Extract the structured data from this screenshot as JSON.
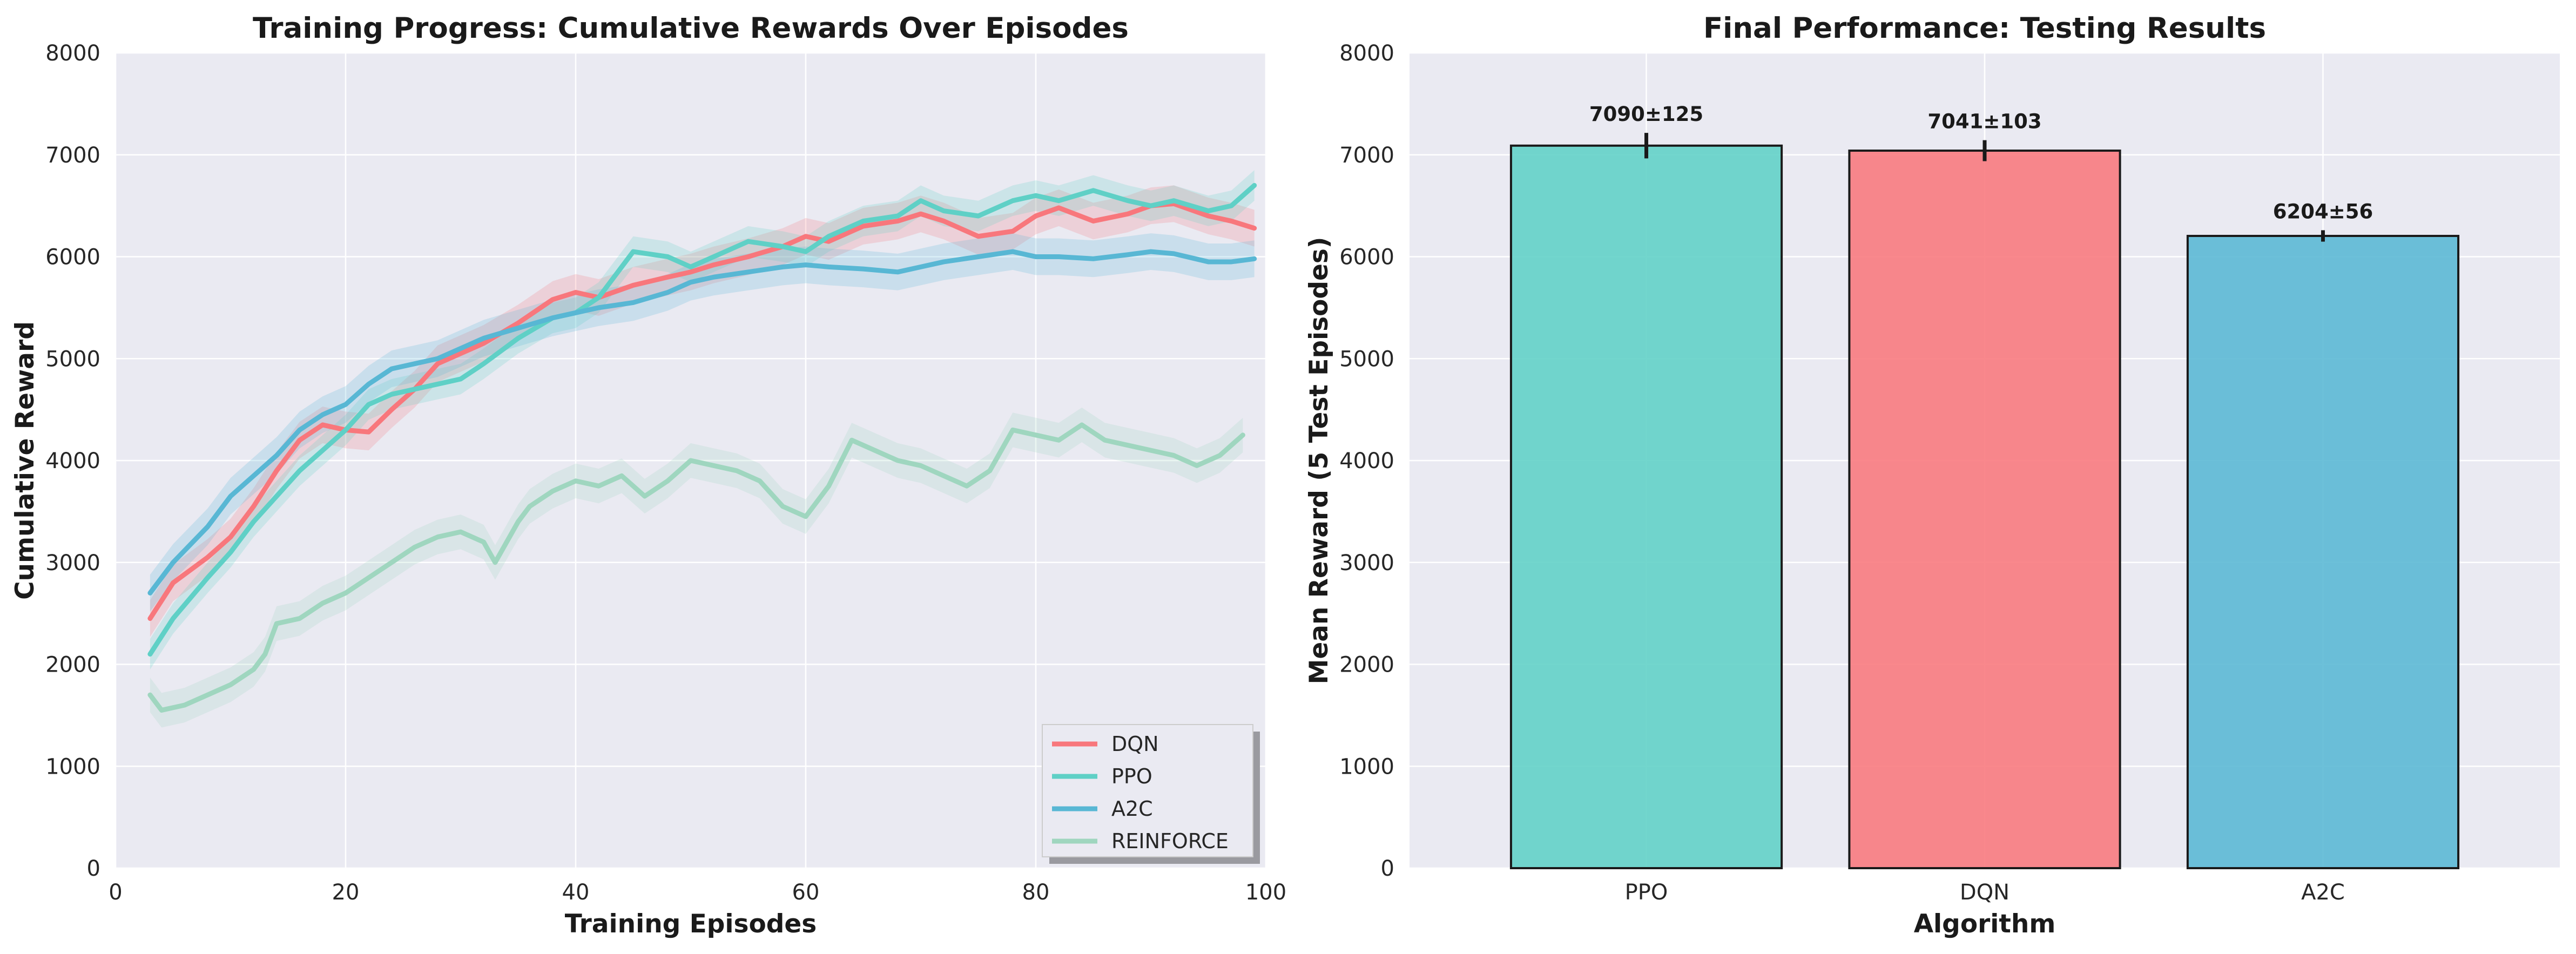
{
  "colors": {
    "DQN": "#f8777c",
    "PPO": "#5fd0c6",
    "A2C": "#58b7d4",
    "REINFORCE": "#9fd6bf",
    "plot_bg": "#eaeaf2",
    "grid": "#ffffff"
  },
  "chart_data": [
    {
      "type": "line",
      "title": "Training Progress: Cumulative Rewards Over Episodes",
      "xlabel": "Training Episodes",
      "ylabel": "Cumulative Reward",
      "xlim": [
        0,
        100
      ],
      "ylim": [
        0,
        8000
      ],
      "xticks": [
        0,
        20,
        40,
        60,
        80,
        100
      ],
      "yticks": [
        0,
        1000,
        2000,
        3000,
        4000,
        5000,
        6000,
        7000,
        8000
      ],
      "grid": true,
      "legend_position": "bottom-right",
      "series": [
        {
          "name": "DQN",
          "band": 180,
          "x": [
            3,
            5,
            8,
            10,
            12,
            14,
            16,
            18,
            20,
            22,
            24,
            26,
            28,
            30,
            32,
            35,
            38,
            40,
            42,
            45,
            48,
            50,
            52,
            55,
            58,
            60,
            62,
            65,
            68,
            70,
            72,
            75,
            78,
            80,
            82,
            85,
            88,
            90,
            92,
            95,
            97,
            99
          ],
          "y": [
            2450,
            2800,
            3050,
            3250,
            3550,
            3900,
            4200,
            4350,
            4300,
            4280,
            4500,
            4700,
            4950,
            5050,
            5150,
            5350,
            5580,
            5650,
            5600,
            5720,
            5800,
            5850,
            5920,
            6000,
            6100,
            6200,
            6150,
            6300,
            6350,
            6420,
            6350,
            6200,
            6250,
            6400,
            6480,
            6350,
            6420,
            6500,
            6520,
            6400,
            6350,
            6280
          ]
        },
        {
          "name": "PPO",
          "band": 150,
          "x": [
            3,
            5,
            8,
            10,
            12,
            14,
            16,
            18,
            20,
            22,
            24,
            26,
            28,
            30,
            32,
            35,
            38,
            40,
            42,
            45,
            48,
            50,
            52,
            55,
            58,
            60,
            62,
            65,
            68,
            70,
            72,
            75,
            78,
            80,
            82,
            85,
            88,
            90,
            92,
            95,
            97,
            99
          ],
          "y": [
            2100,
            2450,
            2850,
            3100,
            3400,
            3650,
            3900,
            4100,
            4300,
            4550,
            4650,
            4700,
            4750,
            4800,
            4950,
            5200,
            5400,
            5450,
            5600,
            6050,
            6000,
            5900,
            6000,
            6150,
            6100,
            6050,
            6200,
            6350,
            6400,
            6550,
            6450,
            6400,
            6550,
            6600,
            6550,
            6650,
            6550,
            6500,
            6550,
            6450,
            6500,
            6700
          ]
        },
        {
          "name": "A2C",
          "band": 180,
          "x": [
            3,
            5,
            8,
            10,
            12,
            14,
            16,
            18,
            20,
            22,
            24,
            26,
            28,
            30,
            32,
            35,
            38,
            40,
            42,
            45,
            48,
            50,
            52,
            55,
            58,
            60,
            62,
            65,
            68,
            70,
            72,
            75,
            78,
            80,
            82,
            85,
            88,
            90,
            92,
            95,
            97,
            99
          ],
          "y": [
            2700,
            3000,
            3350,
            3650,
            3850,
            4050,
            4300,
            4450,
            4550,
            4750,
            4900,
            4950,
            5000,
            5100,
            5200,
            5300,
            5400,
            5450,
            5500,
            5550,
            5650,
            5750,
            5800,
            5850,
            5900,
            5920,
            5900,
            5880,
            5850,
            5900,
            5950,
            6000,
            6050,
            6000,
            6000,
            5980,
            6020,
            6050,
            6030,
            5950,
            5950,
            5980
          ]
        },
        {
          "name": "REINFORCE",
          "band": 170,
          "x": [
            3,
            4,
            6,
            8,
            10,
            12,
            13,
            14,
            16,
            18,
            20,
            22,
            24,
            26,
            28,
            30,
            32,
            33,
            35,
            36,
            38,
            40,
            42,
            44,
            46,
            48,
            50,
            52,
            54,
            56,
            58,
            60,
            62,
            64,
            66,
            68,
            70,
            72,
            74,
            76,
            78,
            80,
            82,
            84,
            86,
            88,
            90,
            92,
            94,
            96,
            98
          ],
          "y": [
            1700,
            1550,
            1600,
            1700,
            1800,
            1950,
            2100,
            2400,
            2450,
            2600,
            2700,
            2850,
            3000,
            3150,
            3250,
            3300,
            3200,
            3000,
            3400,
            3550,
            3700,
            3800,
            3750,
            3850,
            3650,
            3800,
            4000,
            3950,
            3900,
            3800,
            3550,
            3450,
            3750,
            4200,
            4100,
            4000,
            3950,
            3850,
            3750,
            3900,
            4300,
            4250,
            4200,
            4350,
            4200,
            4150,
            4100,
            4050,
            3950,
            4050,
            4250
          ]
        }
      ]
    },
    {
      "type": "bar",
      "title": "Final Performance: Testing Results",
      "xlabel": "Algorithm",
      "ylabel": "Mean Reward (5 Test Episodes)",
      "ylim": [
        0,
        8000
      ],
      "yticks": [
        0,
        1000,
        2000,
        3000,
        4000,
        5000,
        6000,
        7000,
        8000
      ],
      "grid": true,
      "categories": [
        "PPO",
        "DQN",
        "A2C"
      ],
      "values": [
        7090,
        7041,
        6204
      ],
      "errors": [
        125,
        103,
        56
      ],
      "data_labels": [
        "7090±125",
        "7041±103",
        "6204±56"
      ]
    }
  ]
}
